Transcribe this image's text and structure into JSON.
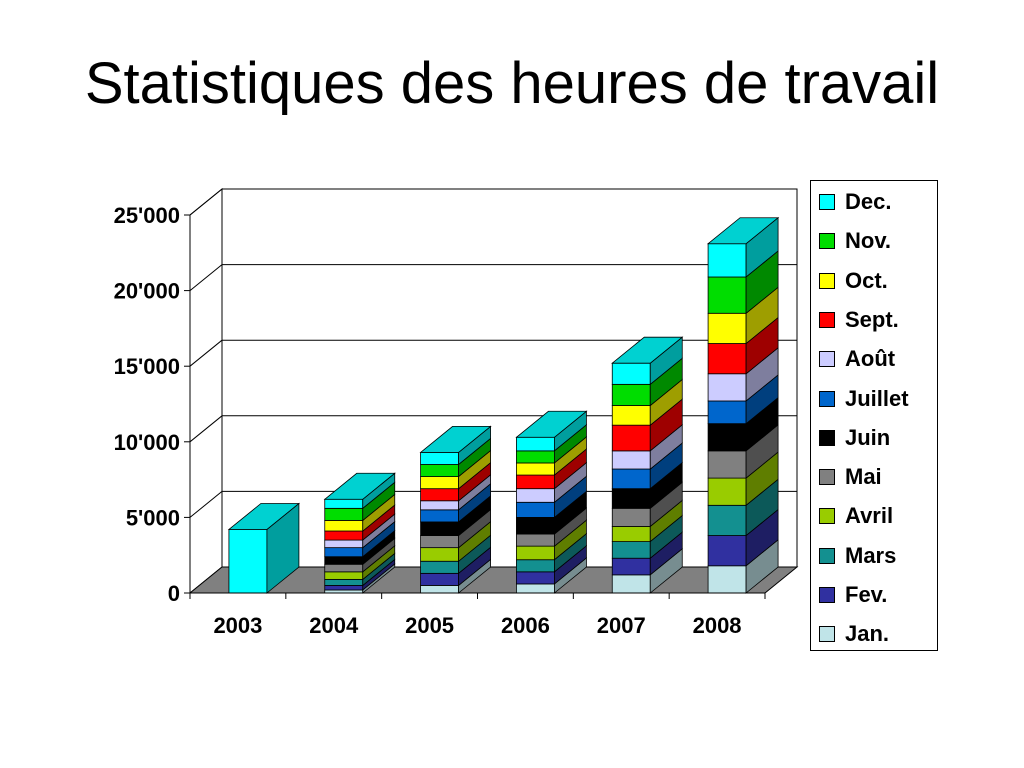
{
  "title": "Statistiques des heures de travail",
  "chart_data": {
    "type": "bar",
    "stacked": true,
    "three_d": true,
    "categories": [
      "2003",
      "2004",
      "2005",
      "2006",
      "2007",
      "2008"
    ],
    "yticks": [
      "0",
      "5'000",
      "10'000",
      "15'000",
      "20'000",
      "25'000"
    ],
    "ylim": [
      0,
      25000
    ],
    "legend_position": "right",
    "grid": true,
    "series": [
      {
        "name": "Jan.",
        "color": "#c0e4e8",
        "values": [
          0,
          200,
          500,
          600,
          1200,
          1800
        ]
      },
      {
        "name": "Fev.",
        "color": "#3030a0",
        "values": [
          0,
          300,
          800,
          800,
          1100,
          2000
        ]
      },
      {
        "name": "Mars",
        "color": "#139090",
        "values": [
          0,
          400,
          800,
          800,
          1100,
          2000
        ]
      },
      {
        "name": "Avril",
        "color": "#99cc00",
        "values": [
          0,
          500,
          900,
          900,
          1000,
          1800
        ]
      },
      {
        "name": "Mai",
        "color": "#808080",
        "values": [
          0,
          500,
          800,
          800,
          1200,
          1800
        ]
      },
      {
        "name": "Juin",
        "color": "#000000",
        "values": [
          0,
          500,
          900,
          1100,
          1300,
          1800
        ]
      },
      {
        "name": "Juillet",
        "color": "#0066cc",
        "values": [
          0,
          600,
          800,
          1000,
          1300,
          1500
        ]
      },
      {
        "name": "Août",
        "color": "#ccccff",
        "values": [
          0,
          500,
          600,
          900,
          1200,
          1800
        ]
      },
      {
        "name": "Sept.",
        "color": "#ff0000",
        "values": [
          0,
          600,
          800,
          900,
          1700,
          2000
        ]
      },
      {
        "name": "Oct.",
        "color": "#ffff00",
        "values": [
          0,
          700,
          800,
          800,
          1300,
          2000
        ]
      },
      {
        "name": "Nov.",
        "color": "#00dd00",
        "values": [
          0,
          800,
          800,
          800,
          1400,
          2400
        ]
      },
      {
        "name": "Dec.",
        "color": "#00ffff",
        "values": [
          4200,
          600,
          800,
          900,
          1400,
          2200
        ]
      }
    ]
  }
}
